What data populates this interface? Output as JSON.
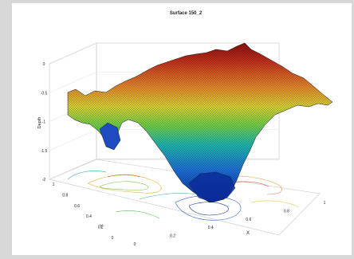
{
  "chart_data": {
    "type": "surface",
    "title": "Surface 150_2",
    "xlabel": "X",
    "ylabel": "Y",
    "zlabel": "Depth",
    "xlim": [
      0,
      1
    ],
    "ylim": [
      0,
      1
    ],
    "zlim": [
      -2,
      0
    ],
    "xticks": [
      "0",
      "0.2",
      "0.4",
      "0.6",
      "0.8",
      "1"
    ],
    "yticks": [
      "0",
      "0.2",
      "0.4",
      "0.6",
      "0.8",
      "1"
    ],
    "zticks": [
      "0",
      "-0.5",
      "-1",
      "-1.5",
      "-2"
    ],
    "colormap": [
      "#0a2c9a",
      "#1e6fd6",
      "#1fb6b0",
      "#6fcf4a",
      "#d8d236",
      "#e48a2c",
      "#c4321d",
      "#8a0f0f"
    ],
    "grid": true,
    "contour_projection": true,
    "surface_profile": {
      "x": [
        0,
        0.1,
        0.2,
        0.3,
        0.4,
        0.5,
        0.6,
        0.7,
        0.8,
        0.9,
        1
      ],
      "depth_back_edge": [
        -0.9,
        -0.8,
        -0.7,
        -0.45,
        -0.3,
        -0.15,
        -0.05,
        -0.1,
        -0.35,
        -0.6,
        -0.9
      ],
      "depth_front_edge": [
        -0.9,
        -1.0,
        -1.1,
        -1.35,
        -1.85,
        -1.95,
        -1.7,
        -1.25,
        -1.0,
        -0.95,
        -0.9
      ]
    }
  }
}
